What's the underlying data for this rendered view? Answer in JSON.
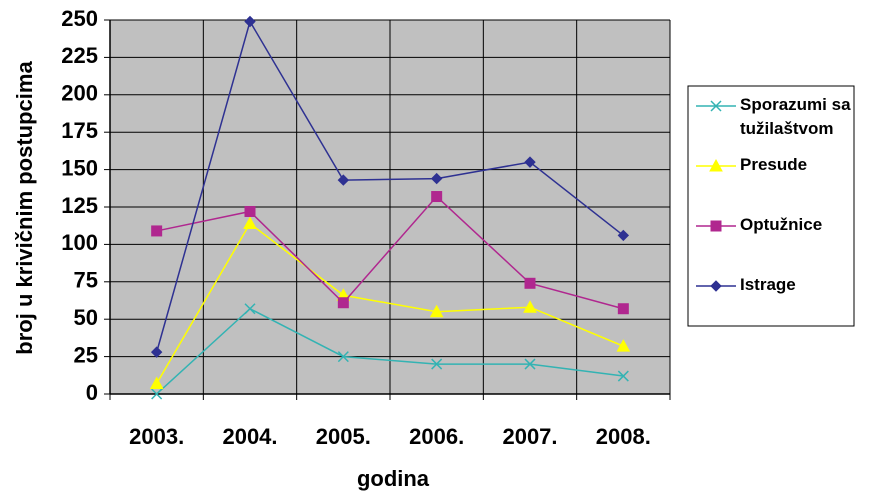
{
  "chart_data": {
    "type": "line",
    "categories": [
      "2003.",
      "2004.",
      "2005.",
      "2006.",
      "2007.",
      "2008."
    ],
    "xlabel": "godina",
    "ylabel": "broj u krivičnim postupcima",
    "ylim": [
      0,
      250
    ],
    "yticks": [
      0,
      25,
      50,
      75,
      100,
      125,
      150,
      175,
      200,
      225,
      250
    ],
    "grid": true,
    "plot_background": "#c0c0c0",
    "legend_position": "right",
    "series": [
      {
        "name": "Sporazumi sa tužilaštvom",
        "name_lines": [
          "Sporazumi sa",
          "tužilaštvom"
        ],
        "color": "#33b3b3",
        "marker": "x",
        "values": [
          0,
          57,
          25,
          20,
          20,
          12
        ]
      },
      {
        "name": "Presude",
        "name_lines": [
          "Presude"
        ],
        "color": "#ffff00",
        "marker": "triangle",
        "values": [
          7,
          114,
          66,
          55,
          58,
          32
        ]
      },
      {
        "name": "Optužnice",
        "name_lines": [
          "Optužnice"
        ],
        "color": "#b0278f",
        "marker": "square",
        "values": [
          109,
          122,
          61,
          132,
          74,
          57
        ]
      },
      {
        "name": "Istrage",
        "name_lines": [
          "Istrage"
        ],
        "color": "#2e3192",
        "marker": "diamond",
        "values": [
          28,
          249,
          143,
          144,
          155,
          106
        ]
      }
    ]
  }
}
